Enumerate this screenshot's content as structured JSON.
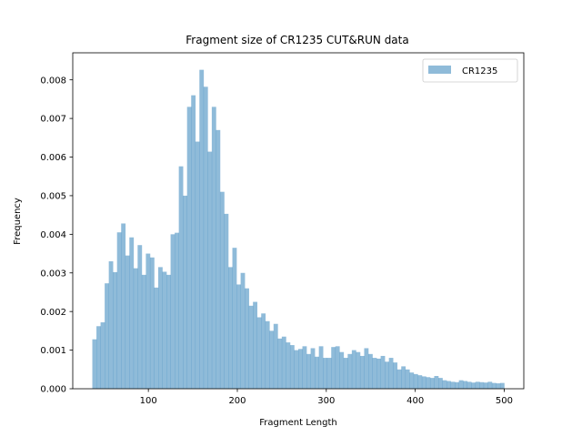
{
  "chart_data": {
    "type": "bar",
    "title": "Fragment size of CR1235 CUT&RUN data",
    "xlabel": "Fragment Length",
    "ylabel": "Frequency",
    "xlim": [
      15,
      522
    ],
    "ylim": [
      0,
      0.0087
    ],
    "xticks": [
      100,
      200,
      300,
      400,
      500
    ],
    "yticks": [
      0.0,
      0.001,
      0.002,
      0.003,
      0.004,
      0.005,
      0.006,
      0.007,
      0.008
    ],
    "ytick_labels": [
      "0.000",
      "0.001",
      "0.002",
      "0.003",
      "0.004",
      "0.005",
      "0.006",
      "0.007",
      "0.008"
    ],
    "legend_position": "top-right",
    "grid": false,
    "series": [
      {
        "name": "CR1235",
        "color": "#1f77b4",
        "opacity": 0.5,
        "bin_start": 37,
        "bin_end": 500,
        "bin_count": 100,
        "values": [
          0.00128,
          0.00162,
          0.00172,
          0.00273,
          0.0033,
          0.00302,
          0.00405,
          0.00428,
          0.00345,
          0.00392,
          0.00312,
          0.00372,
          0.00295,
          0.0035,
          0.0034,
          0.00262,
          0.00315,
          0.00303,
          0.00295,
          0.004,
          0.00404,
          0.00576,
          0.005,
          0.0073,
          0.0076,
          0.0064,
          0.00826,
          0.00782,
          0.00614,
          0.0073,
          0.0067,
          0.0051,
          0.00453,
          0.00315,
          0.00365,
          0.0027,
          0.003,
          0.0026,
          0.00215,
          0.00225,
          0.00185,
          0.00195,
          0.00175,
          0.0015,
          0.00168,
          0.0013,
          0.00135,
          0.0012,
          0.00113,
          0.001,
          0.00103,
          0.0011,
          0.0009,
          0.00105,
          0.00083,
          0.0011,
          0.0008,
          0.0008,
          0.00108,
          0.0011,
          0.00095,
          0.0008,
          0.0009,
          0.001,
          0.00095,
          0.00085,
          0.00105,
          0.0009,
          0.0008,
          0.00078,
          0.00085,
          0.0007,
          0.0008,
          0.00068,
          0.0005,
          0.00058,
          0.0005,
          0.00042,
          0.00038,
          0.00035,
          0.00032,
          0.0003,
          0.00028,
          0.00033,
          0.00028,
          0.00022,
          0.0002,
          0.00018,
          0.00017,
          0.00022,
          0.0002,
          0.00018,
          0.00016,
          0.00018,
          0.00017,
          0.00016,
          0.00018,
          0.00015,
          0.00014,
          0.00015
        ]
      }
    ]
  }
}
